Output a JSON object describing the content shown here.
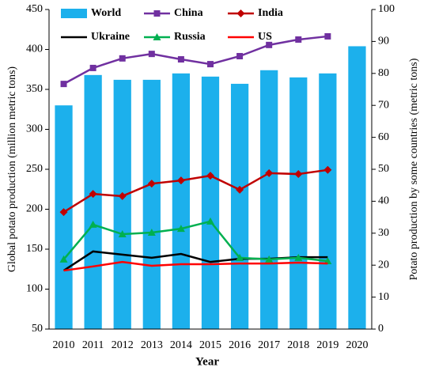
{
  "chart_data": {
    "type": "bar-line",
    "categories": [
      "2010",
      "2011",
      "2012",
      "2013",
      "2014",
      "2015",
      "2016",
      "2017",
      "2018",
      "2019",
      "2020"
    ],
    "xlabel": "Year",
    "ylabel": "Global potato production (million metric tons)",
    "y2label": "Potato production by some countries (metric tons)",
    "ylim": [
      50,
      450
    ],
    "yticks": [
      50,
      100,
      150,
      200,
      250,
      300,
      350,
      400,
      450
    ],
    "y2lim": [
      0,
      100
    ],
    "y2ticks": [
      0,
      10,
      20,
      30,
      40,
      50,
      60,
      70,
      80,
      90,
      100
    ],
    "series": [
      {
        "name": "World",
        "type": "bar",
        "color": "#1cb0ec",
        "values": [
          330,
          368,
          362,
          362,
          370,
          366,
          357,
          374,
          365,
          370,
          404
        ]
      },
      {
        "name": "China",
        "type": "line",
        "axis": "y2",
        "color": "#7030a0",
        "marker": "square",
        "values": [
          76.7,
          81.7,
          84.7,
          86.1,
          84.4,
          82.9,
          85.4,
          88.9,
          90.6,
          91.6,
          null
        ]
      },
      {
        "name": "India",
        "type": "line",
        "axis": "y2",
        "color": "#c00000",
        "marker": "diamond",
        "values": [
          36.6,
          42.3,
          41.6,
          45.5,
          46.5,
          48.0,
          43.6,
          48.8,
          48.5,
          49.8,
          null
        ]
      },
      {
        "name": "Ukraine",
        "type": "line",
        "axis": "y2",
        "color": "#000000",
        "marker": "none",
        "values": [
          18.3,
          24.3,
          23.3,
          22.3,
          23.5,
          21.0,
          22.0,
          22.0,
          22.5,
          22.5,
          null
        ]
      },
      {
        "name": "Russia",
        "type": "line",
        "axis": "y2",
        "color": "#00b050",
        "marker": "triangle",
        "values": [
          21.8,
          32.7,
          29.7,
          30.2,
          31.4,
          33.7,
          22.3,
          21.8,
          22.3,
          21.3,
          null
        ]
      },
      {
        "name": "US",
        "type": "line",
        "axis": "y2",
        "color": "#ff0000",
        "marker": "none",
        "values": [
          18.3,
          19.6,
          21.0,
          19.8,
          20.3,
          20.3,
          20.5,
          20.5,
          20.8,
          20.5,
          null
        ]
      }
    ]
  }
}
